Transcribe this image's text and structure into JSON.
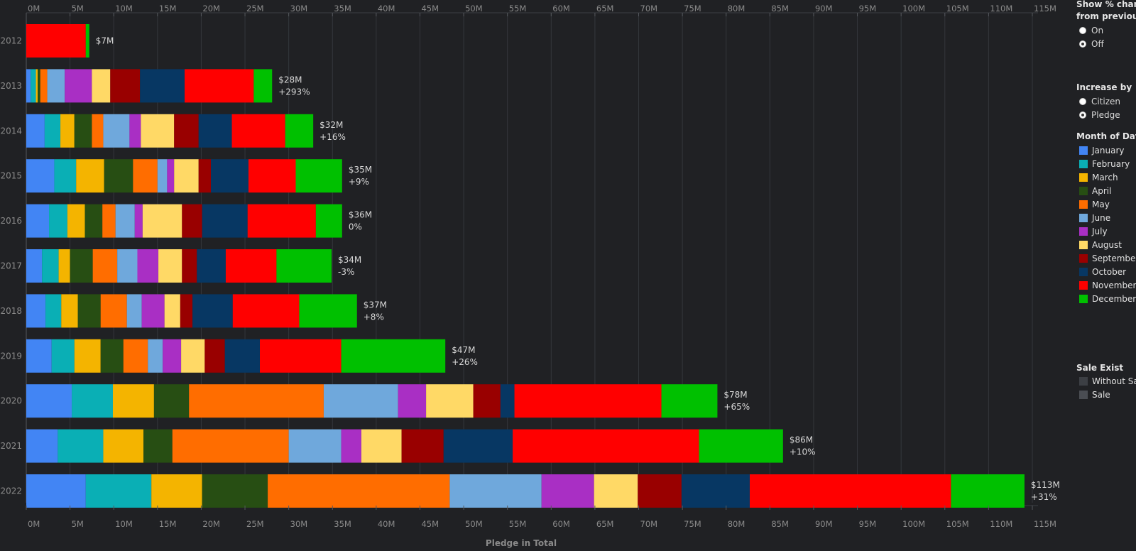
{
  "chart_data": {
    "type": "bar",
    "orientation": "horizontal",
    "stacked": true,
    "xlabel": "Pledge in Total",
    "xlim": [
      0,
      115
    ],
    "x_ticks": [
      "0M",
      "5M",
      "10M",
      "15M",
      "20M",
      "25M",
      "30M",
      "35M",
      "40M",
      "45M",
      "50M",
      "55M",
      "60M",
      "65M",
      "70M",
      "75M",
      "80M",
      "85M",
      "90M",
      "95M",
      "100M",
      "105M",
      "110M",
      "115M"
    ],
    "grid": true,
    "legend_position": "right",
    "categories": [
      "2012",
      "2013",
      "2014",
      "2015",
      "2016",
      "2017",
      "2018",
      "2019",
      "2020",
      "2021",
      "2022"
    ],
    "series": [
      {
        "name": "January",
        "color": "#4285f4",
        "values": [
          0,
          0.5,
          2.1,
          3.2,
          2.6,
          1.8,
          2.2,
          2.9,
          5.2,
          3.6,
          6.8
        ]
      },
      {
        "name": "February",
        "color": "#0aafb5",
        "values": [
          0,
          0.6,
          1.8,
          2.5,
          2.1,
          1.9,
          1.8,
          2.6,
          4.7,
          5.2,
          7.5
        ]
      },
      {
        "name": "March",
        "color": "#f4b400",
        "values": [
          0,
          0.2,
          1.6,
          3.2,
          2.0,
          1.3,
          1.9,
          3.0,
          4.7,
          4.6,
          5.8
        ]
      },
      {
        "name": "April",
        "color": "#274e13",
        "values": [
          0,
          0.3,
          2.0,
          3.3,
          2.0,
          2.6,
          2.6,
          2.6,
          4.0,
          3.3,
          7.5
        ]
      },
      {
        "name": "May",
        "color": "#ff6d00",
        "values": [
          0,
          0.8,
          1.3,
          2.8,
          1.5,
          2.8,
          3.0,
          2.8,
          15.4,
          13.3,
          20.8
        ]
      },
      {
        "name": "June",
        "color": "#6fa8dc",
        "values": [
          0,
          2.0,
          3.0,
          1.1,
          2.2,
          2.3,
          1.7,
          1.7,
          8.5,
          6.0,
          10.5
        ]
      },
      {
        "name": "July",
        "color": "#a92fc4",
        "values": [
          0,
          3.1,
          1.3,
          0.8,
          0.9,
          2.4,
          2.6,
          2.1,
          3.2,
          2.3,
          6.0
        ]
      },
      {
        "name": "August",
        "color": "#ffd966",
        "values": [
          0,
          2.1,
          3.8,
          2.8,
          4.5,
          2.7,
          1.8,
          2.7,
          5.4,
          4.6,
          5.0
        ]
      },
      {
        "name": "September",
        "color": "#990000",
        "values": [
          0,
          3.4,
          2.8,
          1.4,
          2.3,
          1.7,
          1.4,
          2.3,
          3.1,
          4.8,
          5.0
        ]
      },
      {
        "name": "October",
        "color": "#073763",
        "values": [
          0,
          5.1,
          3.8,
          4.3,
          5.2,
          3.3,
          4.6,
          4.0,
          1.6,
          7.9,
          7.8
        ]
      },
      {
        "name": "November",
        "color": "#ff0000",
        "values": [
          6.8,
          7.9,
          6.1,
          5.4,
          7.8,
          5.8,
          7.6,
          9.3,
          16.8,
          21.3,
          23.0
        ]
      },
      {
        "name": "December",
        "color": "#00c000",
        "values": [
          0.4,
          2.1,
          3.2,
          5.3,
          3.0,
          6.3,
          6.6,
          11.9,
          6.4,
          9.6,
          8.4
        ]
      }
    ],
    "bar_labels": [
      {
        "total": "$7M",
        "change": ""
      },
      {
        "total": "$28M",
        "change": "+293%"
      },
      {
        "total": "$32M",
        "change": "+16%"
      },
      {
        "total": "$35M",
        "change": "+9%"
      },
      {
        "total": "$36M",
        "change": "0%"
      },
      {
        "total": "$34M",
        "change": "-3%"
      },
      {
        "total": "$37M",
        "change": "+8%"
      },
      {
        "total": "$47M",
        "change": "+26%"
      },
      {
        "total": "$78M",
        "change": "+65%"
      },
      {
        "total": "$86M",
        "change": "+10%"
      },
      {
        "total": "$113M",
        "change": "+31%"
      }
    ]
  },
  "panel": {
    "show_change": {
      "title_line1": "Show % change",
      "title_line2": "from previous y",
      "options": [
        {
          "label": "On",
          "checked": false
        },
        {
          "label": "Off",
          "checked": true
        }
      ]
    },
    "increase_by": {
      "title": "Increase by",
      "options": [
        {
          "label": "Citizen",
          "checked": false
        },
        {
          "label": "Pledge",
          "checked": true
        }
      ]
    },
    "month_legend": {
      "title": "Month of Date @",
      "items": [
        {
          "label": "January",
          "color": "#4285f4"
        },
        {
          "label": "February",
          "color": "#0aafb5"
        },
        {
          "label": "March",
          "color": "#f4b400"
        },
        {
          "label": "April",
          "color": "#274e13"
        },
        {
          "label": "May",
          "color": "#ff6d00"
        },
        {
          "label": "June",
          "color": "#6fa8dc"
        },
        {
          "label": "July",
          "color": "#a92fc4"
        },
        {
          "label": "August",
          "color": "#ffd966"
        },
        {
          "label": "September",
          "color": "#990000"
        },
        {
          "label": "October",
          "color": "#073763"
        },
        {
          "label": "November",
          "color": "#ff0000"
        },
        {
          "label": "December",
          "color": "#00c000"
        }
      ]
    },
    "sale_legend": {
      "title": "Sale Exist",
      "items": [
        {
          "label": "Without Sal",
          "color": "#3c3f44"
        },
        {
          "label": "Sale",
          "color": "#4a4d53"
        }
      ]
    }
  }
}
